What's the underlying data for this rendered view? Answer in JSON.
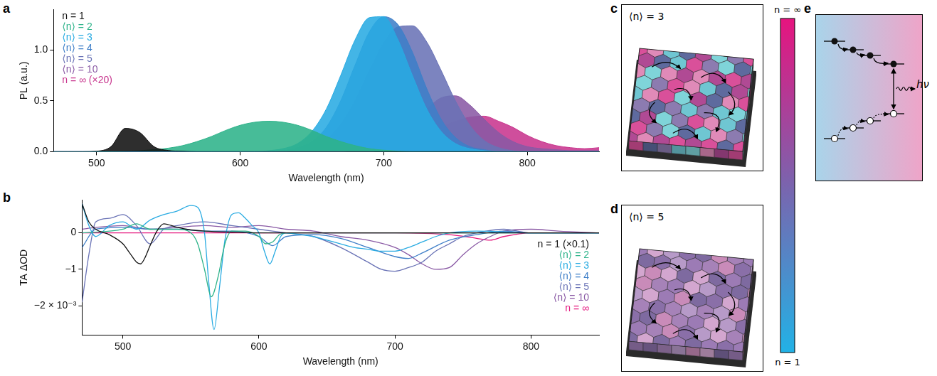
{
  "chart_data": [
    {
      "panel": "a",
      "type": "area",
      "x_label": "Wavelength (nm)",
      "y_label": "PL (a.u.)",
      "x": [
        470,
        480,
        490,
        500,
        510,
        520,
        530,
        540,
        550,
        560,
        570,
        580,
        590,
        600,
        610,
        620,
        630,
        640,
        650,
        660,
        670,
        680,
        690,
        700,
        710,
        720,
        730,
        740,
        750,
        760,
        770,
        780,
        790,
        800,
        810,
        820,
        830,
        840,
        850
      ],
      "xlim": [
        470,
        850
      ],
      "xticks": [
        500,
        600,
        700,
        800
      ],
      "ylim": [
        0,
        1.4
      ],
      "yticks": [
        {
          "value": 0,
          "label": "0.0"
        },
        {
          "value": 0.5,
          "label": "0.5"
        },
        {
          "value": 1,
          "label": "1.0"
        }
      ],
      "grid": false,
      "legend": "upper left",
      "series": [
        {
          "name": "n = 1",
          "color": "#111111",
          "values": [
            0,
            0,
            0,
            0.005,
            0.05,
            0.23,
            0.19,
            0.05,
            0.012,
            0.004,
            0,
            0,
            0,
            0,
            0,
            0,
            0,
            0,
            0,
            0,
            0,
            0,
            0,
            0,
            0,
            0,
            0,
            0,
            0,
            0,
            0,
            0,
            0,
            0,
            0,
            0,
            0,
            0,
            0
          ]
        },
        {
          "name": "⟨n⟩ = 2",
          "color": "#2EB38A",
          "values": [
            0,
            0,
            0,
            0,
            0,
            0.005,
            0.01,
            0.02,
            0.035,
            0.06,
            0.1,
            0.15,
            0.21,
            0.26,
            0.29,
            0.3,
            0.29,
            0.26,
            0.21,
            0.15,
            0.1,
            0.06,
            0.03,
            0.015,
            0.005,
            0,
            0,
            0,
            0,
            0,
            0,
            0,
            0,
            0,
            0,
            0,
            0,
            0,
            0
          ]
        },
        {
          "name": "⟨n⟩ = 3",
          "color": "#29ABE2",
          "values": [
            0,
            0,
            0,
            0,
            0,
            0,
            0,
            0,
            0,
            0,
            0,
            0,
            0,
            0,
            0,
            0.01,
            0.03,
            0.08,
            0.2,
            0.42,
            0.75,
            1.1,
            1.32,
            1.33,
            1.1,
            0.75,
            0.42,
            0.2,
            0.08,
            0.03,
            0.01,
            0,
            0,
            0,
            0,
            0,
            0,
            0,
            0
          ]
        },
        {
          "name": "⟨n⟩ = 4",
          "color": "#3F7FC8",
          "values": [
            0,
            0,
            0,
            0,
            0,
            0,
            0,
            0,
            0,
            0,
            0,
            0,
            0,
            0,
            0,
            0,
            0.01,
            0.04,
            0.1,
            0.24,
            0.5,
            0.85,
            1.18,
            1.33,
            1.25,
            0.98,
            0.62,
            0.32,
            0.14,
            0.05,
            0.02,
            0,
            0,
            0,
            0,
            0,
            0,
            0,
            0
          ]
        },
        {
          "name": "⟨n⟩ = 5",
          "color": "#6A73B6",
          "values": [
            0,
            0,
            0,
            0,
            0,
            0,
            0,
            0,
            0,
            0,
            0,
            0,
            0,
            0,
            0,
            0,
            0,
            0.02,
            0.05,
            0.12,
            0.27,
            0.5,
            0.8,
            1.07,
            1.23,
            1.24,
            1.08,
            0.8,
            0.5,
            0.26,
            0.11,
            0.04,
            0.01,
            0,
            0,
            0,
            0,
            0,
            0
          ]
        },
        {
          "name": "⟨n⟩ = 10",
          "color": "#8A5AA5",
          "values": [
            0,
            0,
            0,
            0,
            0,
            0,
            0,
            0,
            0,
            0,
            0,
            0,
            0,
            0,
            0,
            0,
            0,
            0,
            0,
            0,
            0,
            0.02,
            0.05,
            0.1,
            0.18,
            0.29,
            0.42,
            0.53,
            0.55,
            0.46,
            0.32,
            0.19,
            0.1,
            0.05,
            0.03,
            0.02,
            0.01,
            0.01,
            0.01
          ]
        },
        {
          "name": "n = ∞ (×20)",
          "color": "#C8368E",
          "values": [
            0,
            0,
            0,
            0,
            0,
            0,
            0,
            0,
            0,
            0,
            0,
            0,
            0,
            0,
            0,
            0,
            0,
            0,
            0,
            0,
            0,
            0,
            0,
            0.02,
            0.05,
            0.1,
            0.16,
            0.24,
            0.3,
            0.34,
            0.35,
            0.3,
            0.24,
            0.16,
            0.1,
            0.06,
            0.04,
            0.03,
            0.04
          ]
        }
      ]
    },
    {
      "panel": "b",
      "type": "line",
      "x_label": "Wavelength (nm)",
      "y_label": "TA ΔOD",
      "xlim": [
        470,
        850
      ],
      "xticks": [
        500,
        600,
        700,
        800
      ],
      "ylim": [
        -2.8,
        0.9
      ],
      "yticks": [
        {
          "value": -2,
          "label": "−2 × 10⁻³"
        },
        {
          "value": -1,
          "label": "−1"
        },
        0
      ],
      "grid": false,
      "legend": "lower right",
      "series": [
        {
          "name": "n = 1 (×0.1)",
          "color": "#111111",
          "x": [
            470,
            475,
            480,
            490,
            500,
            505,
            510,
            513,
            516,
            520,
            525,
            530,
            540,
            550,
            560,
            580,
            600,
            700,
            850
          ],
          "values": [
            0.8,
            0.3,
            0.1,
            -0.05,
            -0.3,
            -0.55,
            -0.8,
            -0.85,
            -0.7,
            -0.35,
            0.05,
            0.25,
            0.15,
            0.08,
            0.05,
            0.02,
            0,
            0,
            0
          ]
        },
        {
          "name": "⟨n⟩ = 2",
          "color": "#2EB38A",
          "x": [
            470,
            500,
            510,
            520,
            540,
            550,
            555,
            560,
            565,
            570,
            575,
            580,
            590,
            600,
            605,
            610,
            615,
            620,
            640,
            700,
            800,
            850
          ],
          "values": [
            0,
            0.1,
            0.25,
            0.1,
            0.1,
            0,
            -0.3,
            -1.0,
            -1.75,
            -1.2,
            -0.3,
            0.05,
            0.05,
            -0.1,
            -0.3,
            -0.25,
            -0.05,
            0,
            0,
            0,
            0,
            0
          ]
        },
        {
          "name": "⟨n⟩ = 3",
          "color": "#29ABE2",
          "x": [
            470,
            475,
            480,
            490,
            500,
            510,
            520,
            530,
            540,
            550,
            555,
            560,
            563,
            567,
            571,
            575,
            580,
            585,
            590,
            595,
            600,
            604,
            608,
            612,
            616,
            620,
            630,
            640,
            650,
            660,
            670,
            680,
            690,
            700,
            710,
            720,
            730,
            740,
            760,
            800,
            850
          ],
          "values": [
            0.8,
            0.2,
            -0.1,
            0.2,
            0.3,
            0.1,
            0.35,
            0.5,
            0.6,
            0.75,
            0.7,
            0.0,
            -1.3,
            -2.65,
            -1.5,
            -0.2,
            0.5,
            0.55,
            0.4,
            0.2,
            0.0,
            -0.5,
            -0.85,
            -0.5,
            -0.1,
            0.0,
            -0.05,
            -0.1,
            -0.2,
            -0.3,
            -0.4,
            -0.45,
            -0.5,
            -0.5,
            -0.4,
            -0.25,
            -0.1,
            0.0,
            0.05,
            0.0,
            0.0
          ]
        },
        {
          "name": "⟨n⟩ = 4",
          "color": "#3F7FC8",
          "x": [
            470,
            480,
            500,
            520,
            540,
            560,
            580,
            600,
            610,
            620,
            640,
            660,
            680,
            700,
            710,
            720,
            740,
            760,
            780,
            800,
            850
          ],
          "values": [
            -0.4,
            0.1,
            0.15,
            0.1,
            0.1,
            0.05,
            0.05,
            -0.1,
            -0.35,
            -0.1,
            -0.05,
            -0.15,
            -0.4,
            -0.65,
            -0.7,
            -0.55,
            -0.2,
            -0.05,
            0.05,
            0,
            0
          ]
        },
        {
          "name": "⟨n⟩ = 5",
          "color": "#6A73B6",
          "x": [
            470,
            475,
            480,
            490,
            500,
            510,
            520,
            530,
            540,
            560,
            580,
            600,
            620,
            640,
            660,
            680,
            690,
            700,
            710,
            720,
            730,
            740,
            750,
            760,
            780,
            800,
            850
          ],
          "values": [
            -1.9,
            -0.6,
            0.3,
            0.4,
            0.5,
            0.2,
            -0.3,
            0.1,
            0.2,
            0.3,
            0.2,
            0.1,
            0.0,
            -0.1,
            -0.4,
            -0.8,
            -1.0,
            -1.05,
            -0.95,
            -0.8,
            -0.5,
            -0.3,
            -0.1,
            0.0,
            0.1,
            0.0,
            0.0
          ]
        },
        {
          "name": "⟨n⟩ = 10",
          "color": "#8A5AA5",
          "x": [
            470,
            480,
            500,
            520,
            540,
            560,
            580,
            600,
            620,
            640,
            660,
            680,
            700,
            710,
            720,
            730,
            740,
            750,
            760,
            770,
            780,
            800,
            820,
            850
          ],
          "values": [
            0.1,
            0.15,
            0.2,
            0.1,
            0.15,
            0.2,
            0.15,
            0.2,
            0.1,
            0.05,
            -0.1,
            -0.2,
            -0.4,
            -0.6,
            -0.85,
            -1.0,
            -0.95,
            -0.6,
            -0.3,
            -0.1,
            0.05,
            0.1,
            0.05,
            0.0
          ]
        },
        {
          "name": "n = ∞",
          "color": "#E5197F",
          "x": [
            470,
            600,
            700,
            740,
            760,
            770,
            780,
            800,
            850
          ],
          "values": [
            0,
            0,
            0,
            -0.05,
            -0.15,
            -0.2,
            -0.1,
            0,
            0
          ]
        }
      ]
    }
  ],
  "diagrams": {
    "c": {
      "panel": "c",
      "label": "⟨n⟩ = 3"
    },
    "d": {
      "panel": "d",
      "label": "⟨n⟩ = 5"
    },
    "colorbar": {
      "top_label": "n = ∞",
      "bottom_label": "n = 1"
    },
    "e": {
      "panel": "e",
      "label": "hν"
    }
  }
}
